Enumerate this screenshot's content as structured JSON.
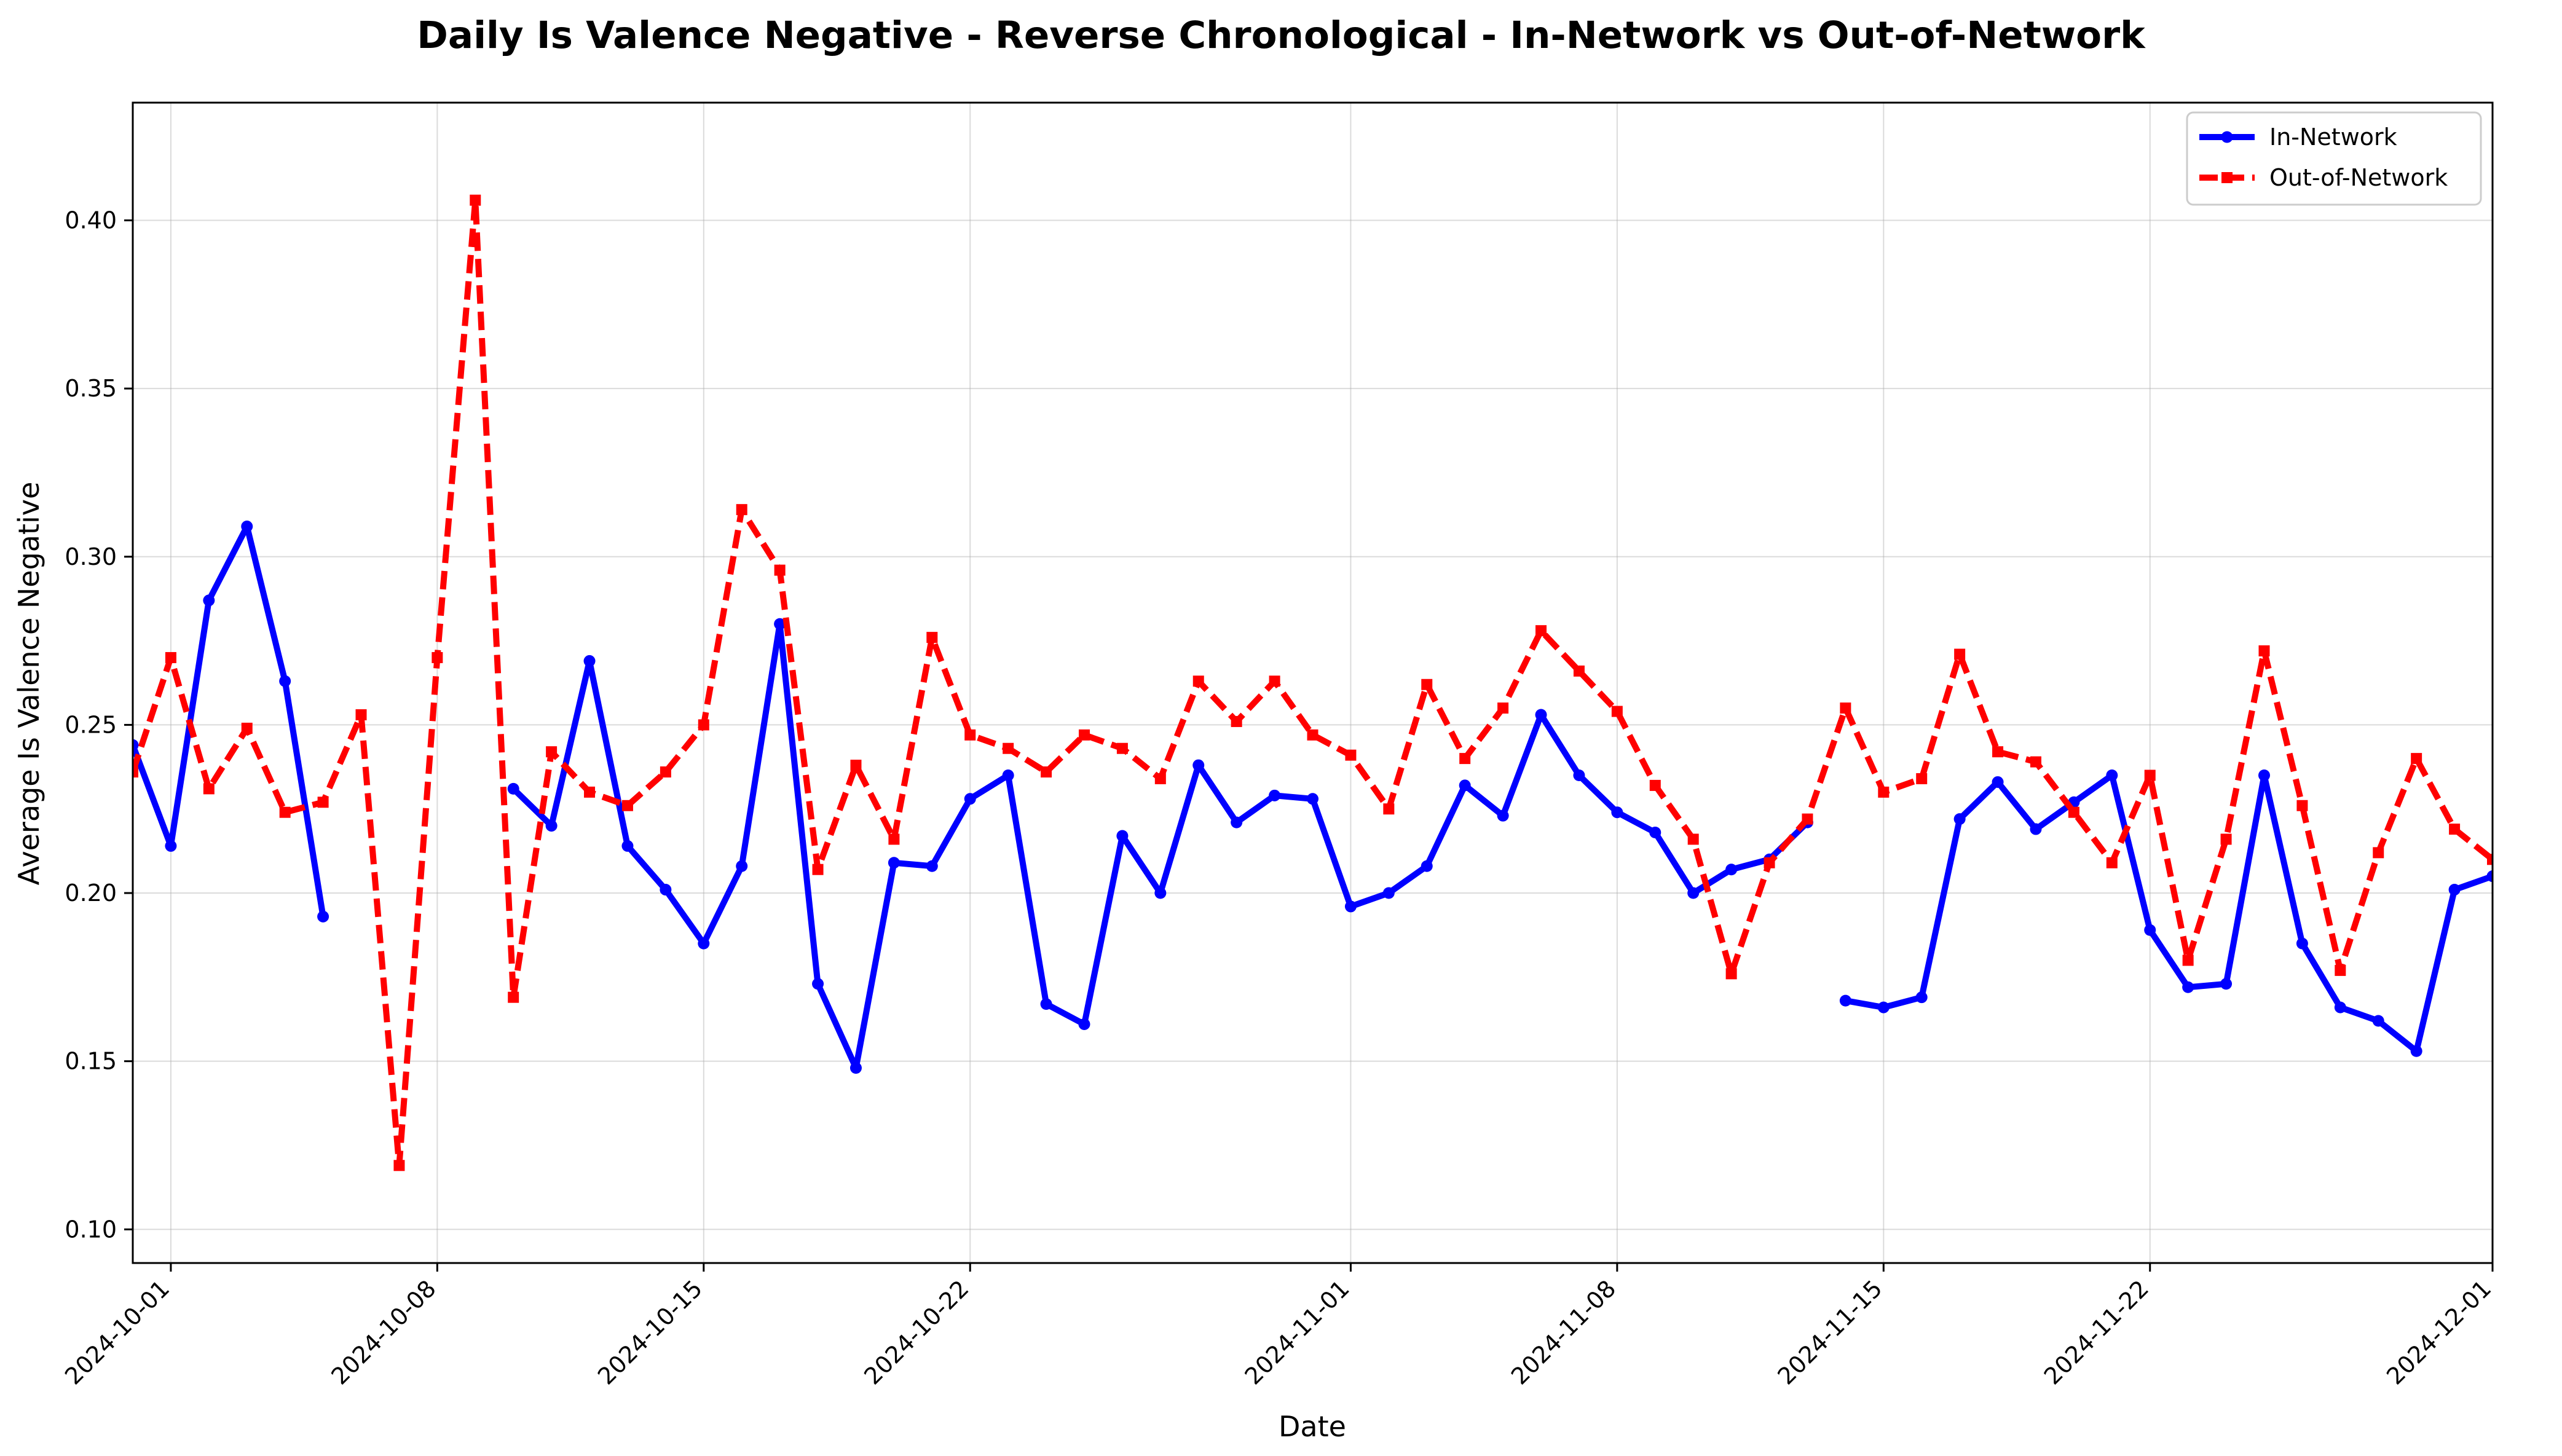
{
  "chart_data": {
    "type": "line",
    "title": "Daily Is Valence Negative - Reverse Chronological - In-Network vs Out-of-Network",
    "xlabel": "Date",
    "ylabel": "Average Is Valence Negative",
    "x_range": [
      "2024-09-30",
      "2024-12-01"
    ],
    "ylim": [
      0.09,
      0.435
    ],
    "x_ticks": [
      "2024-10-01",
      "2024-10-08",
      "2024-10-15",
      "2024-10-22",
      "2024-11-01",
      "2024-11-08",
      "2024-11-15",
      "2024-11-22",
      "2024-12-01"
    ],
    "y_ticks": [
      "0.10",
      "0.15",
      "0.20",
      "0.25",
      "0.30",
      "0.35",
      "0.40"
    ],
    "grid": true,
    "legend_position": "top-right",
    "series": [
      {
        "name": "In-Network",
        "color": "#0000ff",
        "style": "solid",
        "marker": "circle",
        "segments": [
          {
            "start": "2024-09-30",
            "values": [
              0.244,
              0.214,
              0.287,
              0.309,
              0.263,
              0.193
            ]
          },
          {
            "start": "2024-10-10",
            "values": [
              0.231,
              0.22,
              0.269,
              0.214,
              0.201,
              0.185,
              0.208,
              0.28,
              0.173,
              0.148,
              0.209,
              0.208,
              0.228,
              0.235,
              0.167,
              0.161,
              0.217,
              0.2,
              0.238,
              0.221,
              0.229,
              0.228,
              0.196,
              0.2,
              0.208,
              0.232,
              0.223,
              0.253,
              0.235,
              0.224,
              0.218,
              0.2,
              0.207,
              0.21,
              0.221
            ]
          },
          {
            "start": "2024-11-14",
            "values": [
              0.168,
              0.166,
              0.169,
              0.222,
              0.233,
              0.219,
              0.227,
              0.235,
              0.189,
              0.172,
              0.173,
              0.235,
              0.185,
              0.166,
              0.162,
              0.153,
              0.201,
              0.205
            ]
          }
        ]
      },
      {
        "name": "Out-of-Network",
        "color": "#ff0000",
        "style": "dashed",
        "marker": "square",
        "segments": [
          {
            "start": "2024-09-30",
            "values": [
              0.236,
              0.27,
              0.231,
              0.249,
              0.224,
              0.227,
              0.253,
              0.119,
              0.27,
              0.406,
              0.169,
              0.242,
              0.23,
              0.226,
              0.236,
              0.25,
              0.314,
              0.296,
              0.207,
              0.238,
              0.216,
              0.276,
              0.247,
              0.243,
              0.236,
              0.247,
              0.243,
              0.234,
              0.263,
              0.251,
              0.263,
              0.247,
              0.241,
              0.225,
              0.262,
              0.24,
              0.255,
              0.278,
              0.266,
              0.254,
              0.232,
              0.216,
              0.176,
              0.209,
              0.222,
              0.255,
              0.23,
              0.234,
              0.271,
              0.242,
              0.239,
              0.224,
              0.209,
              0.235,
              0.18,
              0.216,
              0.272,
              0.226,
              0.177,
              0.212,
              0.24,
              0.219,
              0.21
            ]
          }
        ]
      }
    ]
  }
}
